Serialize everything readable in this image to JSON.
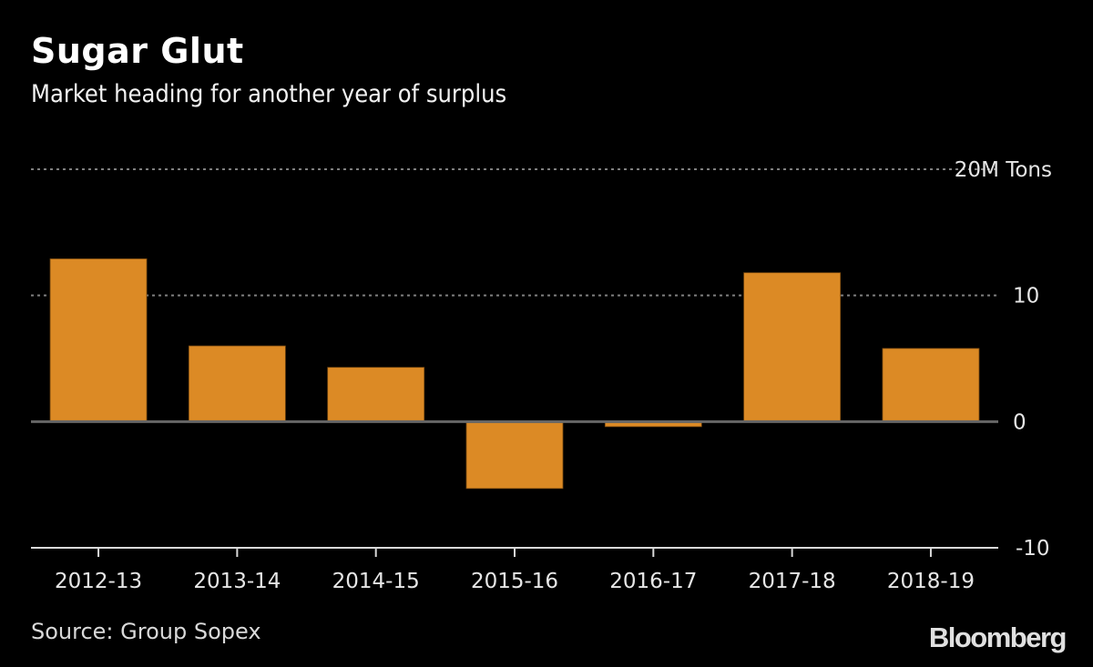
{
  "header": {
    "title": "Sugar Glut",
    "subtitle": "Market heading for another year of surplus"
  },
  "footer": {
    "source": "Source: Group Sopex",
    "brand": "Bloomberg"
  },
  "colors": {
    "bar": "#dc8a25",
    "gridline": "#7f7f7f",
    "zero_line": "#666666",
    "axis_line": "#d9d9d9",
    "background": "#000000"
  },
  "chart_data": {
    "type": "bar",
    "title": "Sugar Glut",
    "subtitle": "Market heading for another year of surplus",
    "xlabel": "",
    "ylabel": "M Tons",
    "unit_label": "20M Tons",
    "categories": [
      "2012-13",
      "2013-14",
      "2014-15",
      "2015-16",
      "2016-17",
      "2017-18",
      "2018-19"
    ],
    "values": [
      12.9,
      6.0,
      4.3,
      -5.3,
      -0.4,
      11.8,
      5.8
    ],
    "ylim": [
      -10,
      20
    ],
    "yticks": [
      {
        "value": 20,
        "label": "20M Tons"
      },
      {
        "value": 10,
        "label": "10"
      },
      {
        "value": 0,
        "label": "0"
      },
      {
        "value": -10,
        "label": "-10"
      }
    ],
    "grid": true,
    "legend": "none",
    "source": "Source: Group Sopex"
  }
}
